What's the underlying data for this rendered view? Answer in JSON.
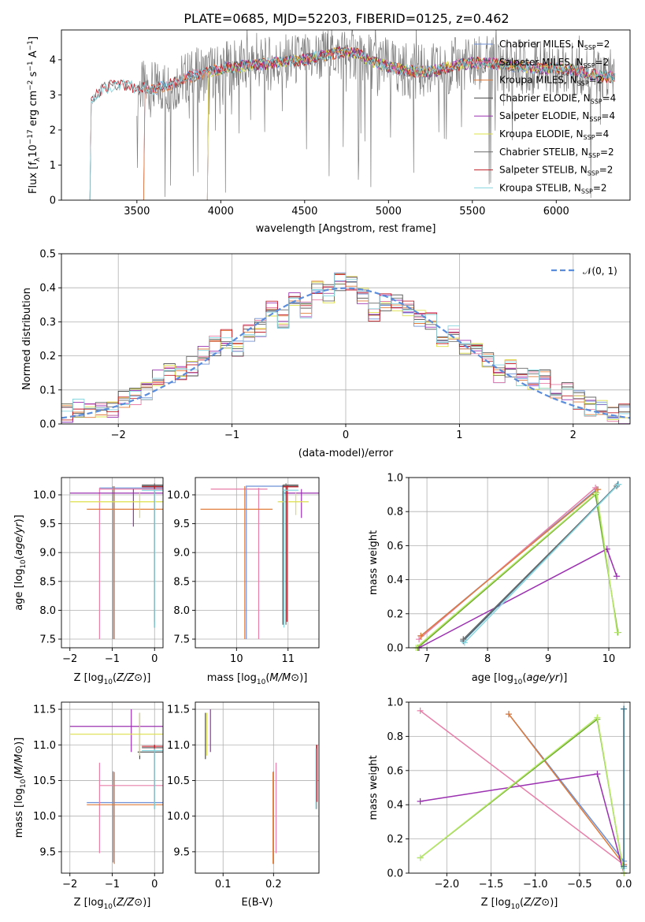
{
  "figure_title": "PLATE=0685, MJD=52203, FIBERID=0125, z=0.462",
  "colors": {
    "Chabrier MILES": "#6c8fd6",
    "Salpeter MILES": "#e87fa9",
    "Kroupa MILES": "#e07b39",
    "Chabrier ELODIE": "#4a4a4a",
    "Salpeter ELODIE": "#9b30b0",
    "Kroupa ELODIE": "#dde04a",
    "Chabrier STELIB": "#6a6a6a",
    "Salpeter STELIB": "#c0202a",
    "Kroupa STELIB": "#86d6e0",
    "green": "#6aaa2a",
    "light_green": "#b8e86a",
    "teal": "#3a6a80",
    "normal": "#5b8ddb"
  },
  "chart_data": [
    {
      "id": "spectrum",
      "type": "line",
      "title": "PLATE=0685, MJD=52203, FIBERID=0125, z=0.462",
      "xlabel": "wavelength [Angstrom, rest frame]",
      "ylabel": "Flux [f_λ 10^-17 erg cm^-2 s^-1 A^-1]",
      "xlim": [
        3050,
        6440
      ],
      "ylim": [
        0,
        4.85
      ],
      "xticks": [
        3500,
        4000,
        4500,
        5000,
        5500,
        6000
      ],
      "yticks": [
        0,
        1,
        2,
        3,
        4
      ],
      "legend_position": "right",
      "legend": [
        "Chabrier MILES, N_SSP=2",
        "Salpeter MILES, N_SSP=2",
        "Kroupa MILES, N_SSP=2",
        "Chabrier ELODIE, N_SSP=4",
        "Salpeter ELODIE, N_SSP=4",
        "Kroupa ELODIE, N_SSP=4",
        "Chabrier STELIB, N_SSP=2",
        "Salpeter STELIB, N_SSP=2",
        "Kroupa STELIB, N_SSP=2"
      ],
      "continuum": {
        "x": [
          3200,
          3300,
          3400,
          3500,
          3600,
          3700,
          3800,
          3900,
          4000,
          4100,
          4200,
          4300,
          4400,
          4500,
          4600,
          4700,
          4800,
          4900,
          5000,
          5100,
          5200,
          5300,
          5400,
          5500,
          5600,
          5700,
          5800,
          5900,
          6000,
          6100,
          6200,
          6300
        ],
        "y": [
          2.7,
          3.2,
          3.3,
          3.2,
          3.15,
          3.3,
          3.5,
          3.6,
          3.75,
          3.8,
          3.85,
          3.9,
          3.95,
          4.0,
          4.1,
          4.2,
          4.2,
          3.95,
          3.8,
          3.7,
          3.65,
          3.7,
          3.85,
          3.9,
          3.9,
          3.85,
          3.8,
          3.75,
          3.75,
          3.7,
          3.6,
          3.5
        ]
      },
      "model_starts": {
        "Chabrier MILES": 3540,
        "Salpeter MILES": 3540,
        "Kroupa MILES": 3540,
        "Chabrier ELODIE": 3920,
        "Salpeter ELODIE": 3920,
        "Kroupa ELODIE": 3920,
        "Chabrier STELIB": 3220,
        "Salpeter STELIB": 3220,
        "Kroupa STELIB": 3220
      },
      "data_x_range": [
        3500,
        6350
      ]
    },
    {
      "id": "residuals",
      "type": "bar",
      "xlabel": "(data-model)/error",
      "ylabel": "Normed distribution",
      "xlim": [
        -2.5,
        2.5
      ],
      "ylim": [
        0,
        0.5
      ],
      "xticks": [
        -2,
        -1,
        0,
        1,
        2
      ],
      "yticks": [
        0.0,
        0.1,
        0.2,
        0.3,
        0.4,
        0.5
      ],
      "legend_position": "top-right",
      "normal_label": "𝒩(0, 1)",
      "bin_width": 0.1,
      "bins_center": [
        -2.45,
        -2.35,
        -2.25,
        -2.15,
        -2.05,
        -1.95,
        -1.85,
        -1.75,
        -1.65,
        -1.55,
        -1.45,
        -1.35,
        -1.25,
        -1.15,
        -1.05,
        -0.95,
        -0.85,
        -0.75,
        -0.65,
        -0.55,
        -0.45,
        -0.35,
        -0.25,
        -0.15,
        -0.05,
        0.05,
        0.15,
        0.25,
        0.35,
        0.45,
        0.55,
        0.65,
        0.75,
        0.85,
        0.95,
        1.05,
        1.15,
        1.25,
        1.35,
        1.45,
        1.55,
        1.65,
        1.75,
        1.85,
        1.95,
        2.05,
        2.15,
        2.25,
        2.35,
        2.45
      ],
      "hist_base": [
        0.035,
        0.045,
        0.04,
        0.04,
        0.045,
        0.07,
        0.085,
        0.1,
        0.13,
        0.15,
        0.14,
        0.17,
        0.2,
        0.23,
        0.25,
        0.22,
        0.27,
        0.28,
        0.34,
        0.31,
        0.36,
        0.33,
        0.39,
        0.38,
        0.42,
        0.41,
        0.37,
        0.33,
        0.36,
        0.35,
        0.34,
        0.31,
        0.3,
        0.24,
        0.27,
        0.23,
        0.22,
        0.18,
        0.15,
        0.16,
        0.14,
        0.13,
        0.13,
        0.1,
        0.095,
        0.07,
        0.05,
        0.045,
        0.03,
        0.03
      ]
    },
    {
      "id": "age_vs_Z",
      "type": "scatter",
      "xlabel": "Z [log10(Z/Z⊙)]",
      "ylabel": "age  [log10(age/yr)]",
      "xlim": [
        -2.2,
        0.2
      ],
      "ylim": [
        7.35,
        10.3
      ],
      "xticks": [
        -2,
        -1,
        0
      ],
      "yticks": [
        7.5,
        8.0,
        8.5,
        9.0,
        9.5,
        10.0
      ],
      "crosses": [
        {
          "c": "Chabrier MILES",
          "x": [
            -1.3,
            0.2
          ],
          "y": [
            10.12,
            10.12
          ],
          "vx": -0.98,
          "vy": [
            7.5,
            10.15
          ]
        },
        {
          "c": "Salpeter MILES",
          "x": [
            -1.3,
            0.2
          ],
          "y": [
            10.1,
            10.1
          ],
          "vx": -1.3,
          "vy": [
            7.5,
            10.12
          ]
        },
        {
          "c": "Kroupa MILES",
          "x": [
            -1.6,
            0.3
          ],
          "y": [
            9.75,
            9.75
          ],
          "vx": -0.95,
          "vy": [
            7.5,
            10.15
          ]
        },
        {
          "c": "Chabrier ELODIE",
          "x": [
            -0.3,
            0.3
          ],
          "y": [
            10.15,
            10.15
          ],
          "vx": 0.0,
          "vy": [
            7.7,
            10.17
          ]
        },
        {
          "c": "Salpeter ELODIE",
          "x": [
            -2.0,
            0.2
          ],
          "y": [
            10.03,
            10.03
          ],
          "vx": -0.5,
          "vy": [
            9.45,
            10.1
          ]
        },
        {
          "c": "Kroupa ELODIE",
          "x": [
            -2.0,
            0.2
          ],
          "y": [
            9.88,
            9.88
          ],
          "vx": -0.35,
          "vy": [
            9.6,
            10.05
          ]
        },
        {
          "c": "Chabrier STELIB",
          "x": [
            -0.3,
            0.3
          ],
          "y": [
            10.17,
            10.17
          ],
          "vx": 0.0,
          "vy": [
            7.75,
            10.2
          ]
        },
        {
          "c": "Salpeter STELIB",
          "x": [
            -0.3,
            0.2
          ],
          "y": [
            10.14,
            10.14
          ],
          "vx": 0.0,
          "vy": [
            7.8,
            10.16
          ]
        },
        {
          "c": "Kroupa STELIB",
          "x": [
            -0.3,
            0.2
          ],
          "y": [
            10.08,
            10.08
          ],
          "vx": 0.0,
          "vy": [
            7.7,
            10.1
          ]
        }
      ]
    },
    {
      "id": "age_vs_mass",
      "type": "scatter",
      "xlabel": "mass [log10(M/M⊙)]",
      "ylabel": "",
      "xlim": [
        9.2,
        11.6
      ],
      "ylim": [
        7.35,
        10.3
      ],
      "xticks": [
        10,
        11
      ],
      "yticks": [
        7.5,
        8.0,
        8.5,
        9.0,
        9.5,
        10.0
      ],
      "crosses": [
        {
          "c": "Chabrier MILES",
          "x": [
            10.2,
            11.0
          ],
          "y": [
            10.15,
            10.15
          ],
          "vx": 10.19,
          "vy": [
            7.5,
            10.16
          ]
        },
        {
          "c": "Salpeter MILES",
          "x": [
            9.5,
            10.6
          ],
          "y": [
            10.1,
            10.1
          ],
          "vx": 10.43,
          "vy": [
            7.5,
            10.12
          ]
        },
        {
          "c": "Kroupa MILES",
          "x": [
            9.3,
            10.7
          ],
          "y": [
            9.75,
            9.75
          ],
          "vx": 10.16,
          "vy": [
            7.5,
            10.15
          ]
        },
        {
          "c": "Chabrier ELODIE",
          "x": [
            10.9,
            11.2
          ],
          "y": [
            10.15,
            10.15
          ],
          "vx": 10.9,
          "vy": [
            7.75,
            10.17
          ]
        },
        {
          "c": "Salpeter ELODIE",
          "x": [
            10.9,
            11.6
          ],
          "y": [
            10.03,
            10.03
          ],
          "vx": 11.26,
          "vy": [
            9.6,
            10.1
          ]
        },
        {
          "c": "Kroupa ELODIE",
          "x": [
            10.8,
            11.4
          ],
          "y": [
            9.88,
            9.88
          ],
          "vx": 11.15,
          "vy": [
            9.65,
            10.05
          ]
        },
        {
          "c": "Chabrier STELIB",
          "x": [
            10.9,
            11.2
          ],
          "y": [
            10.17,
            10.17
          ],
          "vx": 10.96,
          "vy": [
            7.75,
            10.2
          ]
        },
        {
          "c": "Salpeter STELIB",
          "x": [
            10.9,
            11.2
          ],
          "y": [
            10.14,
            10.14
          ],
          "vx": 10.98,
          "vy": [
            7.8,
            10.16
          ]
        },
        {
          "c": "Kroupa STELIB",
          "x": [
            10.9,
            11.2
          ],
          "y": [
            10.08,
            10.08
          ],
          "vx": 10.92,
          "vy": [
            7.7,
            10.1
          ]
        }
      ]
    },
    {
      "id": "weight_vs_age",
      "type": "line",
      "xlabel": "age  [log10(age/yr)]",
      "ylabel": "mass weight",
      "xlim": [
        6.7,
        10.35
      ],
      "ylim": [
        0,
        1.0
      ],
      "xticks": [
        7,
        8,
        9,
        10
      ],
      "yticks": [
        0.0,
        0.2,
        0.4,
        0.6,
        0.8,
        1.0
      ],
      "series": [
        {
          "c": "Chabrier MILES",
          "x": [
            6.9,
            9.8
          ],
          "y": [
            0.07,
            0.93
          ]
        },
        {
          "c": "Salpeter MILES",
          "x": [
            6.87,
            9.78
          ],
          "y": [
            0.05,
            0.94
          ]
        },
        {
          "c": "Kroupa MILES",
          "x": [
            6.9,
            9.82
          ],
          "y": [
            0.07,
            0.93
          ]
        },
        {
          "c": "green",
          "x": [
            6.85,
            9.78,
            10.15
          ],
          "y": [
            0.0,
            0.9,
            0.09
          ]
        },
        {
          "c": "Salpeter ELODIE",
          "x": [
            6.87,
            9.97,
            10.13
          ],
          "y": [
            0.0,
            0.58,
            0.42
          ]
        },
        {
          "c": "light_green",
          "x": [
            6.82,
            9.8,
            10.14
          ],
          "y": [
            0.0,
            0.91,
            0.09
          ]
        },
        {
          "c": "teal",
          "x": [
            7.6,
            10.15
          ],
          "y": [
            0.04,
            0.96
          ]
        },
        {
          "c": "Chabrier STELIB",
          "x": [
            7.6,
            10.13
          ],
          "y": [
            0.05,
            0.95
          ]
        },
        {
          "c": "Kroupa STELIB",
          "x": [
            7.62,
            10.16
          ],
          "y": [
            0.03,
            0.96
          ]
        }
      ]
    },
    {
      "id": "mass_vs_Z",
      "type": "scatter",
      "xlabel": "Z [log10(Z/Z⊙)]",
      "ylabel": "mass [log10(M/M⊙)]",
      "xlim": [
        -2.2,
        0.2
      ],
      "ylim": [
        9.2,
        11.6
      ],
      "xticks": [
        -2,
        -1,
        0
      ],
      "yticks": [
        9.5,
        10.0,
        10.5,
        11.0,
        11.5
      ],
      "crosses": [
        {
          "c": "Chabrier MILES",
          "x": [
            -1.6,
            0.3
          ],
          "y": [
            10.19,
            10.19
          ],
          "vx": -0.98,
          "vy": [
            9.35,
            10.63
          ]
        },
        {
          "c": "Salpeter MILES",
          "x": [
            -1.3,
            0.3
          ],
          "y": [
            10.43,
            10.43
          ],
          "vx": -1.3,
          "vy": [
            9.48,
            10.75
          ]
        },
        {
          "c": "Kroupa MILES",
          "x": [
            -1.6,
            0.3
          ],
          "y": [
            10.16,
            10.16
          ],
          "vx": -0.95,
          "vy": [
            9.33,
            10.62
          ]
        },
        {
          "c": "Chabrier ELODIE",
          "x": [
            -0.4,
            0.3
          ],
          "y": [
            10.9,
            10.9
          ],
          "vx": -0.35,
          "vy": [
            10.8,
            11.45
          ]
        },
        {
          "c": "Salpeter ELODIE",
          "x": [
            -2.0,
            0.2
          ],
          "y": [
            11.26,
            11.26
          ],
          "vx": -0.55,
          "vy": [
            10.9,
            11.5
          ]
        },
        {
          "c": "Kroupa ELODIE",
          "x": [
            -2.0,
            0.2
          ],
          "y": [
            11.15,
            11.15
          ],
          "vx": -0.35,
          "vy": [
            10.85,
            11.45
          ]
        },
        {
          "c": "Chabrier STELIB",
          "x": [
            -0.3,
            0.3
          ],
          "y": [
            10.96,
            10.96
          ],
          "vx": 0.0,
          "vy": [
            10.1,
            11.0
          ]
        },
        {
          "c": "Salpeter STELIB",
          "x": [
            -0.3,
            0.3
          ],
          "y": [
            10.98,
            10.98
          ],
          "vx": 0.0,
          "vy": [
            10.2,
            11.0
          ]
        },
        {
          "c": "Kroupa STELIB",
          "x": [
            -0.3,
            0.3
          ],
          "y": [
            10.92,
            10.92
          ],
          "vx": 0.0,
          "vy": [
            10.1,
            10.95
          ]
        }
      ]
    },
    {
      "id": "mass_vs_ebv",
      "type": "scatter",
      "xlabel": "E(B-V)",
      "ylabel": "",
      "xlim": [
        0.045,
        0.29
      ],
      "ylim": [
        9.2,
        11.6
      ],
      "xticks": [
        0.1,
        0.2
      ],
      "yticks": [
        9.5,
        10.0,
        10.5,
        11.0,
        11.5
      ],
      "sticks": [
        {
          "c": "Chabrier MILES",
          "x": 0.2,
          "vy": [
            9.33,
            10.63
          ]
        },
        {
          "c": "Salpeter MILES",
          "x": 0.205,
          "vy": [
            9.48,
            10.75
          ]
        },
        {
          "c": "Kroupa MILES",
          "x": 0.199,
          "vy": [
            9.33,
            10.62
          ]
        },
        {
          "c": "Chabrier ELODIE",
          "x": 0.065,
          "vy": [
            10.8,
            11.45
          ]
        },
        {
          "c": "Salpeter ELODIE",
          "x": 0.075,
          "vy": [
            10.9,
            11.5
          ]
        },
        {
          "c": "Kroupa ELODIE",
          "x": 0.068,
          "vy": [
            10.85,
            11.45
          ]
        },
        {
          "c": "Chabrier STELIB",
          "x": 0.285,
          "vy": [
            10.1,
            11.0
          ]
        },
        {
          "c": "Salpeter STELIB",
          "x": 0.286,
          "vy": [
            10.2,
            11.0
          ]
        },
        {
          "c": "Kroupa STELIB",
          "x": 0.284,
          "vy": [
            10.1,
            10.95
          ]
        }
      ]
    },
    {
      "id": "weight_vs_Z",
      "type": "line",
      "xlabel": "Z [log10(Z/Z⊙)]",
      "ylabel": "mass weight",
      "xlim": [
        -2.43,
        0.07
      ],
      "ylim": [
        0,
        1.0
      ],
      "xticks": [
        -2.0,
        -1.5,
        -1.0,
        -0.5,
        0.0
      ],
      "yticks": [
        0.0,
        0.2,
        0.4,
        0.6,
        0.8,
        1.0
      ],
      "series": [
        {
          "c": "Salpeter MILES",
          "x": [
            -2.3,
            0.0
          ],
          "y": [
            0.95,
            0.05
          ]
        },
        {
          "c": "Chabrier MILES",
          "x": [
            -1.3,
            0.0
          ],
          "y": [
            0.93,
            0.07
          ]
        },
        {
          "c": "Kroupa MILES",
          "x": [
            -1.3,
            0.0
          ],
          "y": [
            0.93,
            0.05
          ]
        },
        {
          "c": "Salpeter ELODIE",
          "x": [
            -2.3,
            -0.3,
            0.0
          ],
          "y": [
            0.42,
            0.58,
            0.0
          ]
        },
        {
          "c": "green",
          "x": [
            -2.3,
            -0.3,
            0.0
          ],
          "y": [
            0.09,
            0.9,
            0.0
          ]
        },
        {
          "c": "light_green",
          "x": [
            -2.3,
            -0.3,
            0.0
          ],
          "y": [
            0.09,
            0.91,
            0.0
          ]
        },
        {
          "c": "Kroupa STELIB",
          "x": [
            0.0,
            0.0
          ],
          "y": [
            0.03,
            0.96
          ]
        },
        {
          "c": "teal",
          "x": [
            0.0,
            0.0
          ],
          "y": [
            0.04,
            0.96
          ]
        }
      ]
    }
  ]
}
